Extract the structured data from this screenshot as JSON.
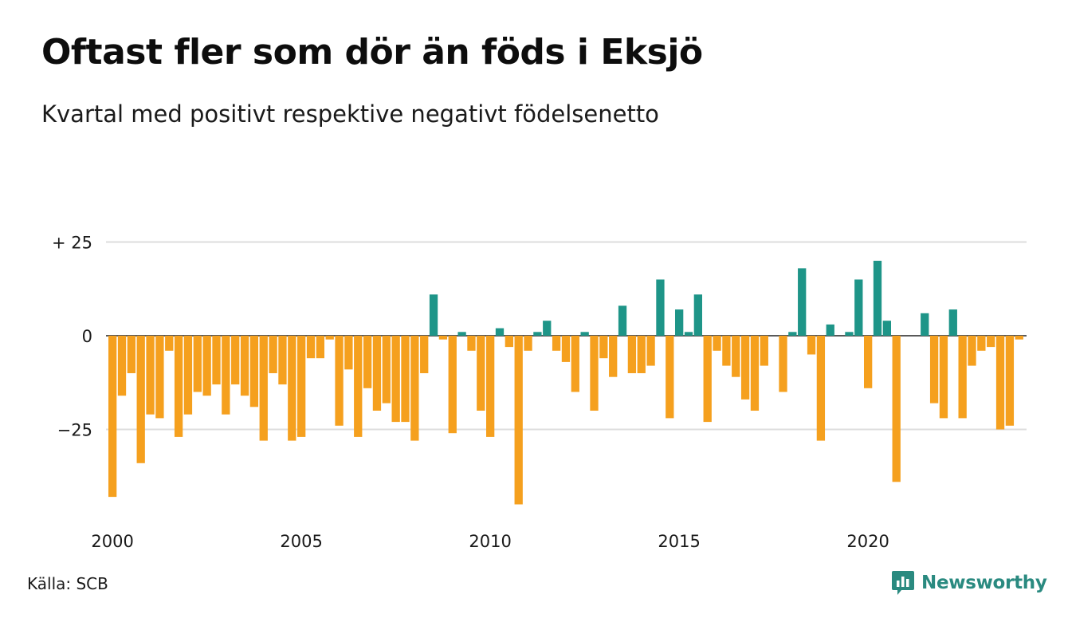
{
  "header": {
    "title": "Oftast fler som dör än föds i Eksjö",
    "subtitle": "Kvartal med positivt respektive negativt födelsenetto"
  },
  "footer": {
    "source": "Källa: SCB",
    "brand": "Newsworthy"
  },
  "colors": {
    "positive": "#1e9588",
    "negative": "#f5a01e",
    "grid": "#dddddd",
    "brand": "#2a8a80"
  },
  "chart_data": {
    "type": "bar",
    "title": "Oftast fler som dör än föds i Eksjö",
    "subtitle": "Kvartal med positivt respektive negativt födelsenetto",
    "x_start": "2000-Q1",
    "ylim": [
      -48,
      27
    ],
    "y_ticks": [
      {
        "value": 25,
        "label": "+ 25"
      },
      {
        "value": 0,
        "label": "0"
      },
      {
        "value": -25,
        "label": "−25"
      }
    ],
    "x_ticks": [
      {
        "value": "2000-Q1",
        "label": "2000"
      },
      {
        "value": "2005-Q1",
        "label": "2005"
      },
      {
        "value": "2010-Q1",
        "label": "2010"
      },
      {
        "value": "2015-Q1",
        "label": "2015"
      },
      {
        "value": "2020-Q1",
        "label": "2020"
      }
    ],
    "grid": true,
    "legend": "none",
    "values": [
      -43,
      -16,
      -10,
      -34,
      -21,
      -22,
      -4,
      -27,
      -21,
      -15,
      -16,
      -13,
      -21,
      -13,
      -16,
      -19,
      -28,
      -10,
      -13,
      -28,
      -27,
      -6,
      -6,
      -1,
      -24,
      -9,
      -27,
      -14,
      -20,
      -18,
      -23,
      -23,
      -28,
      -10,
      11,
      -1,
      -26,
      1,
      -4,
      -20,
      -27,
      2,
      -3,
      -45,
      -4,
      1,
      4,
      -4,
      -7,
      -15,
      1,
      -20,
      -6,
      -11,
      8,
      -10,
      -10,
      -8,
      15,
      -22,
      7,
      1,
      11,
      -23,
      -4,
      -8,
      -11,
      -17,
      -20,
      -8,
      0,
      -15,
      1,
      18,
      -5,
      -28,
      3,
      0,
      1,
      15,
      -14,
      20,
      4,
      -39,
      0,
      0,
      6,
      -18,
      -22,
      7,
      -22,
      -8,
      -4,
      -3,
      -25,
      -24,
      -1
    ]
  }
}
